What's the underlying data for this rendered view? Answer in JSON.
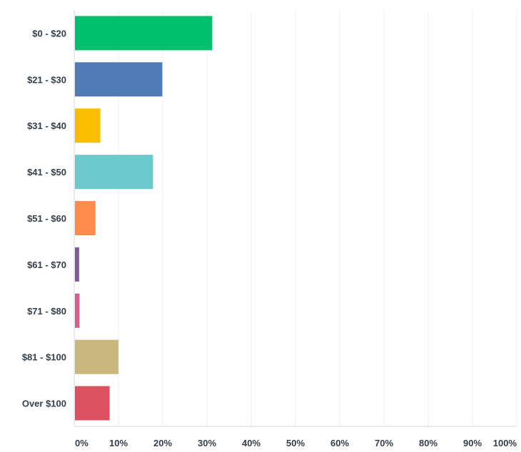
{
  "chart_data": {
    "type": "bar",
    "orientation": "horizontal",
    "title": "",
    "xlabel": "",
    "ylabel": "",
    "categories": [
      "$0 - $20",
      "$21 - $30",
      "$31 - $40",
      "$41 - $50",
      "$51 - $60",
      "$61 - $70",
      "$71 - $80",
      "$81 - $100",
      "Over $100"
    ],
    "values": [
      31.2,
      19.9,
      5.9,
      17.8,
      4.8,
      1.1,
      1.2,
      10.0,
      8.0
    ],
    "colors": [
      "#00bf6f",
      "#507cb6",
      "#f9be00",
      "#6bc8cd",
      "#ff8b4f",
      "#7f5a96",
      "#d25f90",
      "#c9b77e",
      "#dd5060"
    ],
    "xlim": [
      0,
      100
    ],
    "x_ticks": [
      "0%",
      "10%",
      "20%",
      "30%",
      "40%",
      "50%",
      "60%",
      "70%",
      "80%",
      "90%",
      "100%"
    ],
    "grid": true,
    "legend": "none"
  }
}
